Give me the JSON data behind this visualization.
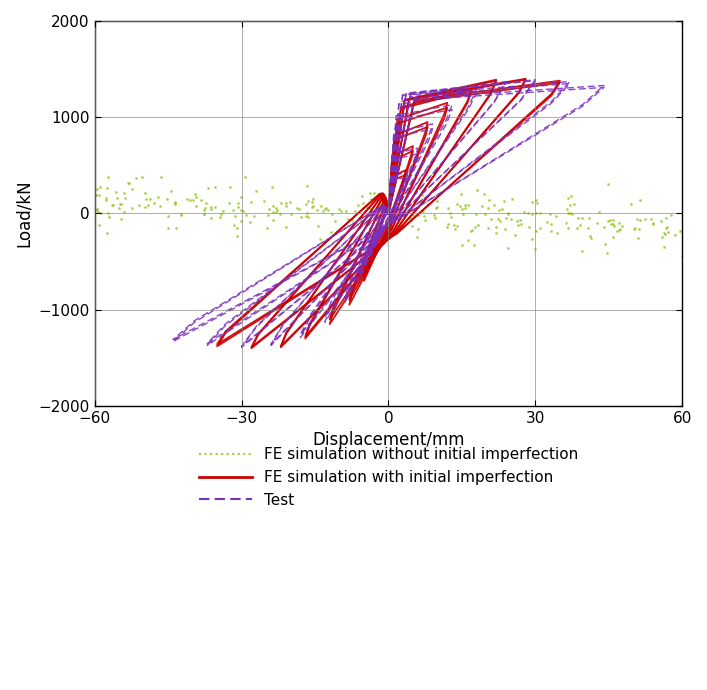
{
  "title": "",
  "xlabel": "Displacement/mm",
  "ylabel": "Load/kN",
  "xlim": [
    -60,
    60
  ],
  "ylim": [
    -2000,
    2000
  ],
  "xticks": [
    -60,
    -30,
    0,
    30,
    60
  ],
  "yticks": [
    -2000,
    -1000,
    0,
    1000,
    2000
  ],
  "color_no_imperfection": "#9ACD32",
  "color_with_imperfection": "#CC0000",
  "color_test": "#7B2FBE",
  "legend_labels": [
    "FE simulation without initial imperfection",
    "FE simulation with initial imperfection",
    "Test"
  ],
  "figsize": [
    7.07,
    6.9
  ],
  "dpi": 100
}
